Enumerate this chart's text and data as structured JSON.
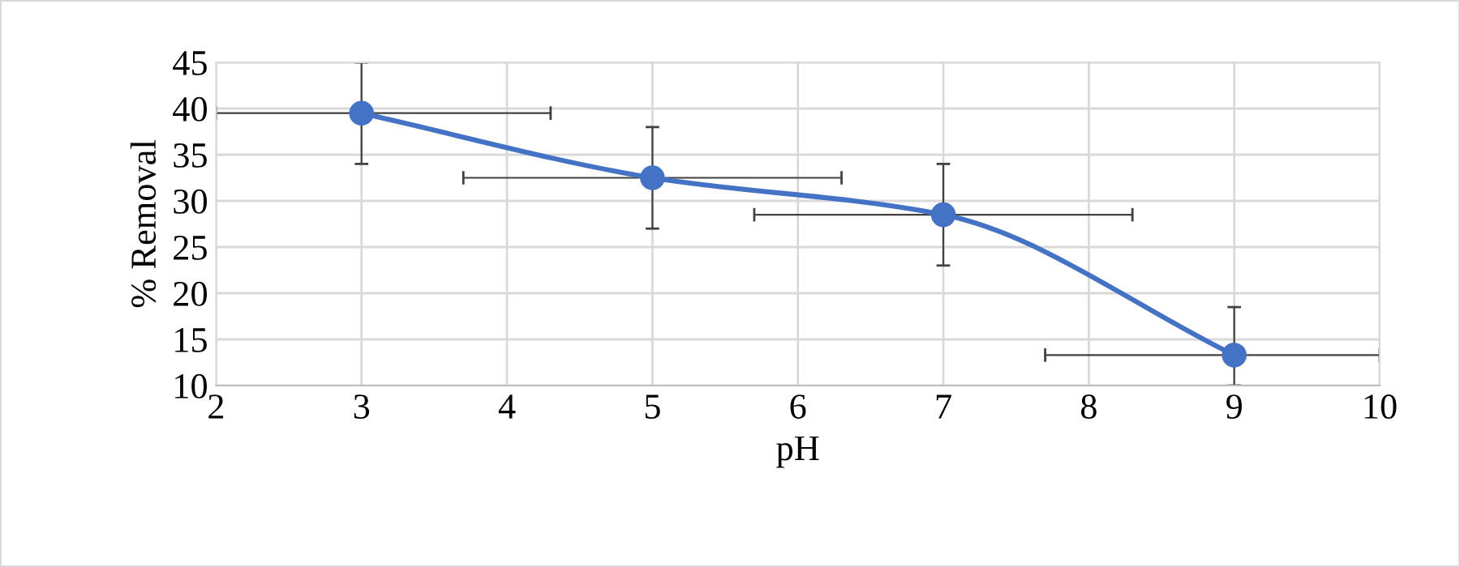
{
  "chart_data": {
    "type": "line",
    "xlabel": "pH",
    "ylabel": "% Removal",
    "x": [
      3,
      5,
      7,
      9
    ],
    "series": [
      {
        "color": "#4472c4",
        "values": [
          39.5,
          32.5,
          28.5,
          13.3
        ],
        "errors": [
          [
            34,
            45
          ],
          [
            27,
            38
          ],
          [
            23,
            34
          ],
          [
            10,
            18.5
          ]
        ],
        "xerrors": [
          [
            2,
            4.3
          ],
          [
            3.7,
            6.3
          ],
          [
            5.7,
            8.3
          ],
          [
            7.7,
            10
          ]
        ]
      }
    ],
    "xlim": [
      2,
      10
    ],
    "xticks": [
      2,
      3,
      4,
      5,
      6,
      7,
      8,
      9,
      10
    ],
    "ylim": [
      10,
      45
    ],
    "yticks": [
      10,
      15,
      20,
      25,
      30,
      35,
      40,
      45
    ],
    "grid": true,
    "marker": "circle",
    "line_style": "solid"
  }
}
